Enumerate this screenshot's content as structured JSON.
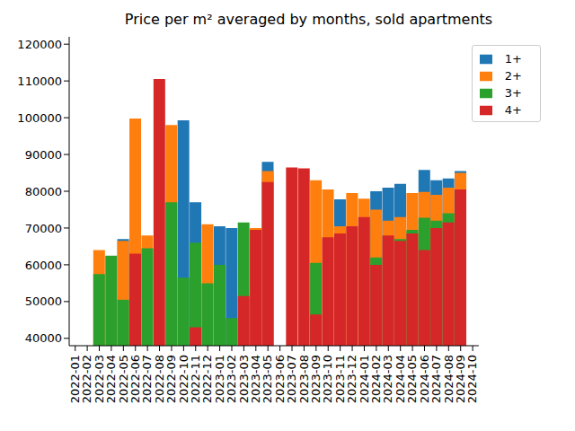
{
  "chart_data": {
    "type": "bar",
    "title": "Price per m² averaged by months, sold apartments",
    "categories": [
      "2022-01",
      "2022-02",
      "2022-03",
      "2022-04",
      "2022-05",
      "2022-06",
      "2022-07",
      "2022-08",
      "2022-09",
      "2022-10",
      "2022-11",
      "2022-12",
      "2023-01",
      "2023-02",
      "2023-03",
      "2023-04",
      "2023-05",
      "2023-06",
      "2023-07",
      "2023-08",
      "2023-09",
      "2023-10",
      "2023-11",
      "2023-12",
      "2024-01",
      "2024-02",
      "2024-03",
      "2024-04",
      "2024-05",
      "2024-06",
      "2024-07",
      "2024-08",
      "2024-09",
      "2024-10"
    ],
    "series": [
      {
        "name": "1+",
        "color": "#1f77b4",
        "values": [
          null,
          null,
          null,
          null,
          67000,
          null,
          null,
          null,
          null,
          99300,
          77000,
          null,
          70500,
          70000,
          null,
          null,
          88000,
          null,
          null,
          null,
          null,
          null,
          77800,
          null,
          null,
          80000,
          81000,
          82000,
          null,
          85800,
          83000,
          83500,
          85500,
          null
        ]
      },
      {
        "name": "2+",
        "color": "#ff7f0e",
        "values": [
          null,
          null,
          64000,
          null,
          66500,
          99800,
          68000,
          null,
          98000,
          null,
          null,
          71000,
          null,
          null,
          null,
          70000,
          85500,
          null,
          null,
          null,
          83000,
          80500,
          70500,
          79500,
          78000,
          75000,
          72000,
          73000,
          79500,
          79800,
          79000,
          81000,
          85000,
          null
        ]
      },
      {
        "name": "3+",
        "color": "#2ca02c",
        "values": [
          null,
          null,
          57500,
          62500,
          50500,
          null,
          64500,
          null,
          77000,
          56500,
          66000,
          55000,
          60000,
          45500,
          71500,
          null,
          null,
          null,
          null,
          null,
          60500,
          null,
          null,
          null,
          null,
          62000,
          null,
          67000,
          69500,
          72800,
          72000,
          74000,
          null,
          null
        ]
      },
      {
        "name": "4+",
        "color": "#d62728",
        "values": [
          null,
          null,
          null,
          null,
          null,
          63000,
          null,
          110500,
          null,
          null,
          43000,
          null,
          null,
          null,
          51500,
          69500,
          82500,
          null,
          86500,
          86200,
          46500,
          67500,
          68500,
          70500,
          73000,
          60000,
          68000,
          66500,
          68500,
          64000,
          70000,
          71500,
          80500,
          null
        ]
      }
    ],
    "ylim": [
      38000,
      122000
    ],
    "yticks": [
      40000,
      50000,
      60000,
      70000,
      80000,
      90000,
      100000,
      110000,
      120000
    ],
    "legend": "upper right",
    "grid": false
  }
}
